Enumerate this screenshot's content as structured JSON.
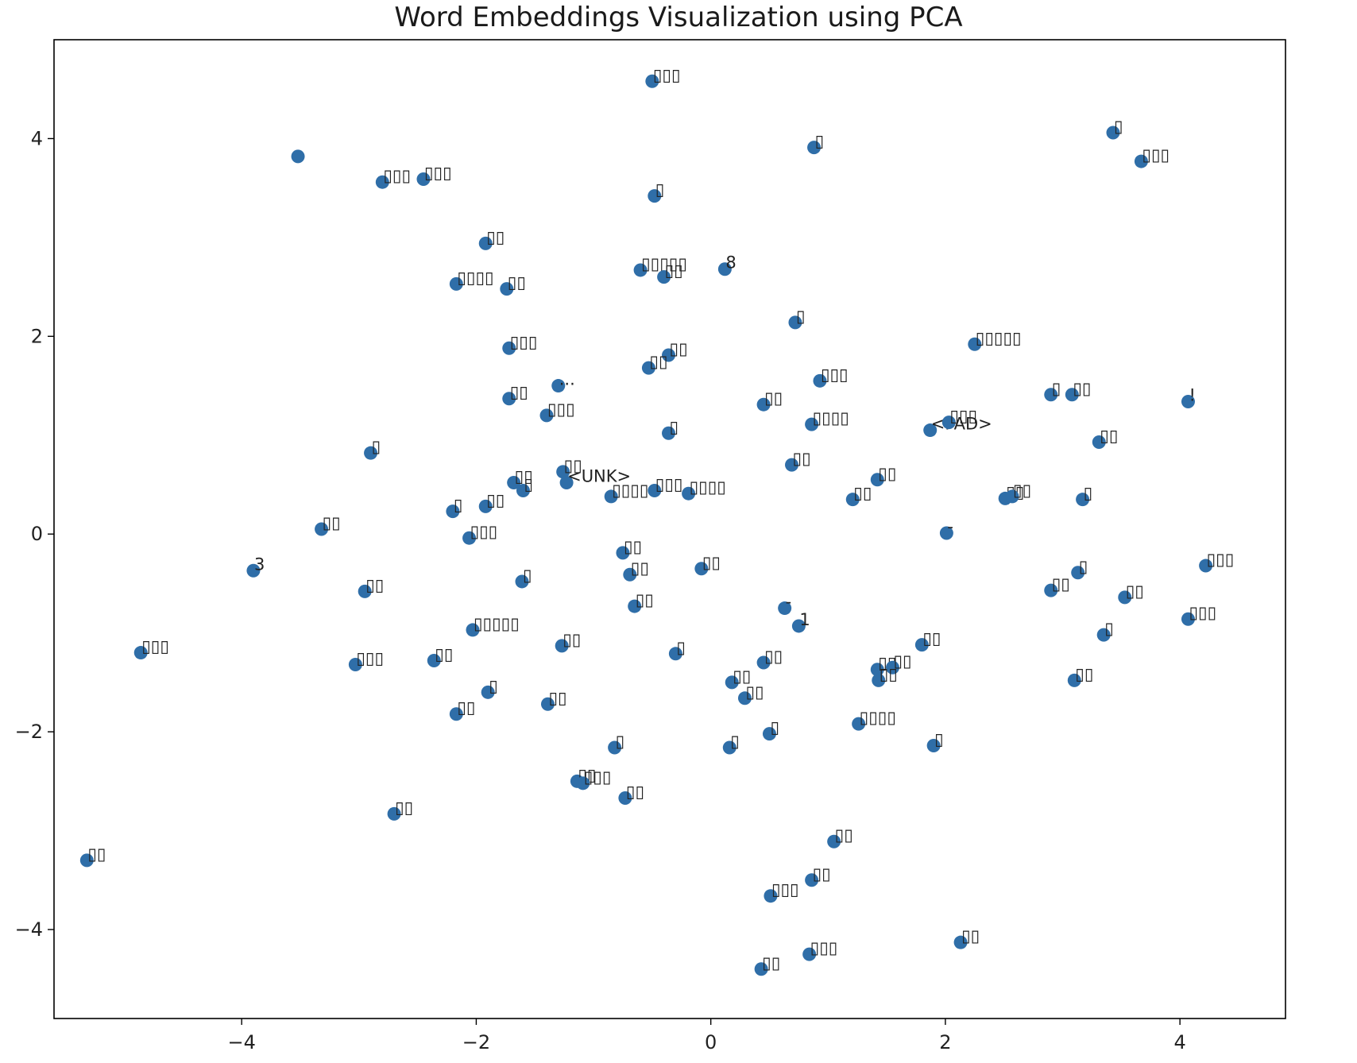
{
  "chart_data": {
    "type": "scatter",
    "title": "Word Embeddings Visualization using PCA",
    "xlabel": "",
    "ylabel": "",
    "xlim": [
      -5.6,
      4.9
    ],
    "ylim": [
      -4.9,
      5.0
    ],
    "grid": false,
    "legend": "none",
    "x_ticks": [
      "−4",
      "−2",
      "0",
      "2",
      "4"
    ],
    "x_tick_values": [
      -4,
      -2,
      0,
      2,
      4
    ],
    "y_ticks": [
      "4",
      "2",
      "0",
      "−2",
      "−4"
    ],
    "y_tick_values": [
      4,
      2,
      0,
      -2,
      -4
    ],
    "point_color": "#2f6ea8",
    "points": [
      {
        "x": -0.5,
        "y": 4.58,
        "label": "▯▯▯"
      },
      {
        "x": 0.88,
        "y": 3.91,
        "label": "▯"
      },
      {
        "x": 3.43,
        "y": 4.06,
        "label": "▯"
      },
      {
        "x": 3.67,
        "y": 3.77,
        "label": "▯▯▯"
      },
      {
        "x": -3.52,
        "y": 3.82,
        "label": ""
      },
      {
        "x": -2.8,
        "y": 3.56,
        "label": "▯▯▯"
      },
      {
        "x": -2.45,
        "y": 3.59,
        "label": "▯▯▯"
      },
      {
        "x": -0.48,
        "y": 3.42,
        "label": "▯"
      },
      {
        "x": -1.92,
        "y": 2.94,
        "label": "▯▯"
      },
      {
        "x": -0.6,
        "y": 2.67,
        "label": "▯▯▯▯▯"
      },
      {
        "x": -0.4,
        "y": 2.6,
        "label": "▯▯"
      },
      {
        "x": 0.12,
        "y": 2.68,
        "label": "8"
      },
      {
        "x": -2.17,
        "y": 2.53,
        "label": "▯▯▯▯"
      },
      {
        "x": -1.74,
        "y": 2.48,
        "label": "▯▯"
      },
      {
        "x": 0.72,
        "y": 2.14,
        "label": "▯"
      },
      {
        "x": 2.25,
        "y": 1.92,
        "label": "▯▯▯▯▯"
      },
      {
        "x": -1.72,
        "y": 1.88,
        "label": "▯▯▯"
      },
      {
        "x": -0.36,
        "y": 1.81,
        "label": "▯▯"
      },
      {
        "x": -0.53,
        "y": 1.68,
        "label": "▯▯"
      },
      {
        "x": 0.93,
        "y": 1.55,
        "label": "▯▯▯"
      },
      {
        "x": -1.3,
        "y": 1.5,
        "label": "..."
      },
      {
        "x": -1.72,
        "y": 1.37,
        "label": "▯▯"
      },
      {
        "x": 0.45,
        "y": 1.31,
        "label": "▯▯"
      },
      {
        "x": 2.9,
        "y": 1.41,
        "label": "▯"
      },
      {
        "x": 3.08,
        "y": 1.41,
        "label": "▯▯"
      },
      {
        "x": 4.07,
        "y": 1.34,
        "label": "!"
      },
      {
        "x": -1.4,
        "y": 1.2,
        "label": "▯▯▯"
      },
      {
        "x": 0.86,
        "y": 1.11,
        "label": "▯▯▯▯"
      },
      {
        "x": 1.87,
        "y": 1.05,
        "label": "<PAD>"
      },
      {
        "x": 2.03,
        "y": 1.13,
        "label": "▯▯▯"
      },
      {
        "x": -0.36,
        "y": 1.02,
        "label": "▯"
      },
      {
        "x": 3.31,
        "y": 0.93,
        "label": "▯▯"
      },
      {
        "x": -2.9,
        "y": 0.82,
        "label": "▯"
      },
      {
        "x": 0.69,
        "y": 0.7,
        "label": "▯▯"
      },
      {
        "x": -1.26,
        "y": 0.63,
        "label": "▯▯"
      },
      {
        "x": -1.23,
        "y": 0.52,
        "label": "<UNK>"
      },
      {
        "x": -1.68,
        "y": 0.52,
        "label": "▯▯"
      },
      {
        "x": -1.6,
        "y": 0.44,
        "label": "▯"
      },
      {
        "x": 1.42,
        "y": 0.55,
        "label": "▯▯"
      },
      {
        "x": -0.48,
        "y": 0.44,
        "label": "▯▯▯"
      },
      {
        "x": -0.85,
        "y": 0.38,
        "label": "▯▯▯▯"
      },
      {
        "x": -0.19,
        "y": 0.41,
        "label": "▯▯▯▯"
      },
      {
        "x": 1.21,
        "y": 0.35,
        "label": "▯▯"
      },
      {
        "x": 2.51,
        "y": 0.36,
        "label": "▯▯"
      },
      {
        "x": 2.57,
        "y": 0.38,
        "label": "▯▯"
      },
      {
        "x": 3.17,
        "y": 0.35,
        "label": "▯"
      },
      {
        "x": -1.92,
        "y": 0.28,
        "label": "▯▯"
      },
      {
        "x": -2.2,
        "y": 0.23,
        "label": "▯"
      },
      {
        "x": -3.32,
        "y": 0.05,
        "label": "▯▯"
      },
      {
        "x": -2.06,
        "y": -0.04,
        "label": "▯▯▯"
      },
      {
        "x": 2.01,
        "y": 0.01,
        "label": "-"
      },
      {
        "x": -0.75,
        "y": -0.19,
        "label": "▯▯"
      },
      {
        "x": -0.69,
        "y": -0.41,
        "label": "▯▯"
      },
      {
        "x": -0.08,
        "y": -0.35,
        "label": "▯▯"
      },
      {
        "x": -3.9,
        "y": -0.37,
        "label": "3"
      },
      {
        "x": -1.61,
        "y": -0.48,
        "label": "▯"
      },
      {
        "x": 3.13,
        "y": -0.39,
        "label": "▯"
      },
      {
        "x": 4.22,
        "y": -0.32,
        "label": "▯▯▯"
      },
      {
        "x": -2.95,
        "y": -0.58,
        "label": "▯▯"
      },
      {
        "x": 2.9,
        "y": -0.57,
        "label": "▯▯"
      },
      {
        "x": 3.53,
        "y": -0.64,
        "label": "▯▯"
      },
      {
        "x": -0.65,
        "y": -0.73,
        "label": "▯▯"
      },
      {
        "x": 0.63,
        "y": -0.75,
        "label": "-"
      },
      {
        "x": 0.75,
        "y": -0.93,
        "label": "1"
      },
      {
        "x": -2.03,
        "y": -0.97,
        "label": "▯▯▯▯▯"
      },
      {
        "x": 4.07,
        "y": -0.86,
        "label": "▯▯▯"
      },
      {
        "x": 3.35,
        "y": -1.02,
        "label": "▯"
      },
      {
        "x": -4.86,
        "y": -1.2,
        "label": "▯▯▯"
      },
      {
        "x": -1.27,
        "y": -1.13,
        "label": "▯▯"
      },
      {
        "x": 1.8,
        "y": -1.12,
        "label": "▯▯"
      },
      {
        "x": -0.3,
        "y": -1.21,
        "label": "▯"
      },
      {
        "x": -3.03,
        "y": -1.32,
        "label": "▯▯▯"
      },
      {
        "x": -2.36,
        "y": -1.28,
        "label": "▯▯"
      },
      {
        "x": 0.45,
        "y": -1.3,
        "label": "▯▯"
      },
      {
        "x": 1.42,
        "y": -1.37,
        "label": "▯▯"
      },
      {
        "x": 1.55,
        "y": -1.35,
        "label": "▯▯"
      },
      {
        "x": 1.43,
        "y": -1.48,
        "label": "▯▯"
      },
      {
        "x": 0.18,
        "y": -1.5,
        "label": "▯▯"
      },
      {
        "x": 3.1,
        "y": -1.48,
        "label": "▯▯"
      },
      {
        "x": -1.9,
        "y": -1.6,
        "label": "▯"
      },
      {
        "x": 0.29,
        "y": -1.66,
        "label": "▯▯"
      },
      {
        "x": -1.39,
        "y": -1.72,
        "label": "▯▯"
      },
      {
        "x": -2.17,
        "y": -1.82,
        "label": "▯▯"
      },
      {
        "x": 1.26,
        "y": -1.92,
        "label": "▯▯▯▯"
      },
      {
        "x": 0.5,
        "y": -2.02,
        "label": "▯"
      },
      {
        "x": -0.82,
        "y": -2.16,
        "label": "▯"
      },
      {
        "x": 0.16,
        "y": -2.16,
        "label": "▯"
      },
      {
        "x": 1.9,
        "y": -2.14,
        "label": "▯"
      },
      {
        "x": -1.14,
        "y": -2.5,
        "label": "▯▯"
      },
      {
        "x": -1.09,
        "y": -2.52,
        "label": "▯▯▯"
      },
      {
        "x": -0.73,
        "y": -2.67,
        "label": "▯▯"
      },
      {
        "x": -2.7,
        "y": -2.83,
        "label": "▯▯"
      },
      {
        "x": 1.05,
        "y": -3.11,
        "label": "▯▯"
      },
      {
        "x": -5.32,
        "y": -3.3,
        "label": "▯▯"
      },
      {
        "x": 0.86,
        "y": -3.5,
        "label": "▯▯"
      },
      {
        "x": 0.51,
        "y": -3.66,
        "label": "▯▯▯"
      },
      {
        "x": 2.13,
        "y": -4.13,
        "label": "▯▯"
      },
      {
        "x": 0.84,
        "y": -4.25,
        "label": "▯▯▯"
      },
      {
        "x": 0.43,
        "y": -4.4,
        "label": "▯▯"
      }
    ]
  }
}
